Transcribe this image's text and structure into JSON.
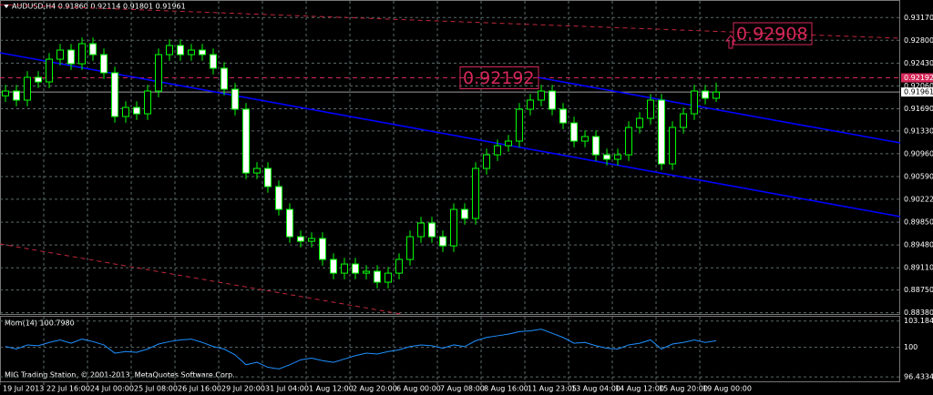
{
  "window": {
    "title": "AUDUSD,H4  0.91860 0.92114 0.91801 0.91961",
    "footer": "MIG Trading Station, © 2001-2013, MetaQuotes Software Corp."
  },
  "chart_data": [
    {
      "type": "candlestick",
      "grid": true,
      "wick_color": "#00ff00",
      "up_color": "#000000",
      "down_color": "#ffffff",
      "xlim": [
        -0.5,
        81.83
      ],
      "xticks": [
        {
          "value": -0.5,
          "label": "19 Jul 2013"
        },
        {
          "value": 3.5,
          "label": "22 Jul 16:00"
        },
        {
          "value": 7.5,
          "label": "24 Jul 00:00"
        },
        {
          "value": 11.5,
          "label": "25 Jul 08:00"
        },
        {
          "value": 15.5,
          "label": "26 Jul 16:00"
        },
        {
          "value": 19.5,
          "label": "29 Jul 20:00"
        },
        {
          "value": 23.5,
          "label": "31 Jul 04:00"
        },
        {
          "value": 27.5,
          "label": "1 Aug 12:00"
        },
        {
          "value": 31.5,
          "label": "2 Aug 20:00"
        },
        {
          "value": 35.5,
          "label": "6 Aug 00:00"
        },
        {
          "value": 39.5,
          "label": "7 Aug 08:00"
        },
        {
          "value": 43.5,
          "label": "8 Aug 16:00"
        },
        {
          "value": 47.5,
          "label": "11 Aug 23:05"
        },
        {
          "value": 51.5,
          "label": "13 Aug 04:00"
        },
        {
          "value": 55.5,
          "label": "14 Aug 12:00"
        },
        {
          "value": 59.5,
          "label": "15 Aug 20:00"
        },
        {
          "value": 63.5,
          "label": "19 Aug 00:00"
        }
      ],
      "ylim": [
        0.8836,
        0.9341
      ],
      "yticks": [
        {
          "value": 0.9317,
          "label": "0.93170"
        },
        {
          "value": 0.928,
          "label": "0.92800"
        },
        {
          "value": 0.9243,
          "label": "0.92430"
        },
        {
          "value": 0.9206,
          "label": "0.92060"
        },
        {
          "value": 0.9169,
          "label": "0.91690"
        },
        {
          "value": 0.9133,
          "label": "0.91330"
        },
        {
          "value": 0.9096,
          "label": "0.90960"
        },
        {
          "value": 0.9059,
          "label": "0.90590"
        },
        0.90222,
        {
          "value": 0.8985,
          "label": "0.89850"
        },
        {
          "value": 0.8948,
          "label": "0.89480"
        },
        {
          "value": 0.8911,
          "label": "0.89110"
        },
        {
          "value": 0.8875,
          "label": "0.88750"
        },
        {
          "value": 0.8838,
          "label": "0.88380"
        }
      ],
      "open": [
        0.919,
        0.91977,
        0.9183,
        0.92199,
        0.92125,
        0.92494,
        0.92642,
        0.9242,
        0.92745,
        0.92568,
        0.92273,
        0.91564,
        0.91711,
        0.91608,
        0.91977,
        0.92568,
        0.92716,
        0.92568,
        0.92642,
        0.92568,
        0.92347,
        0.92007,
        0.91682,
        0.90648,
        0.90722,
        0.90427,
        0.90057,
        0.89614,
        0.8954,
        0.89585,
        0.89245,
        0.89023,
        0.89171,
        0.89023,
        0.89053,
        0.88876,
        0.89023,
        0.89245,
        0.89614,
        0.89836,
        0.89614,
        0.89466,
        0.90057,
        0.8991,
        0.90722,
        0.90943,
        0.91091,
        0.91165,
        0.91682,
        0.9183,
        0.91977,
        0.91682,
        0.9146,
        0.91165,
        0.91239,
        0.90943,
        0.9087,
        0.90943,
        0.91387,
        0.91534,
        0.9183,
        0.90796,
        0.91387,
        0.91608,
        0.91977,
        0.9186
      ],
      "high": [
        0.92077,
        0.92077,
        0.92299,
        0.92299,
        0.92594,
        0.92742,
        0.92742,
        0.92845,
        0.92845,
        0.92668,
        0.92373,
        0.91811,
        0.91811,
        0.92077,
        0.92668,
        0.92816,
        0.92816,
        0.92742,
        0.92742,
        0.92668,
        0.92447,
        0.92107,
        0.91782,
        0.90822,
        0.90822,
        0.90527,
        0.90157,
        0.89714,
        0.89685,
        0.89685,
        0.89345,
        0.89271,
        0.89271,
        0.89153,
        0.89153,
        0.89123,
        0.89345,
        0.89714,
        0.89936,
        0.89936,
        0.89714,
        0.90157,
        0.90157,
        0.90822,
        0.91043,
        0.91191,
        0.91265,
        0.91782,
        0.9193,
        0.92077,
        0.92077,
        0.91782,
        0.9156,
        0.91339,
        0.91339,
        0.91043,
        0.91043,
        0.91487,
        0.91634,
        0.9193,
        0.9193,
        0.91487,
        0.91708,
        0.92077,
        0.92077,
        0.92114
      ],
      "low": [
        0.918,
        0.9173,
        0.9173,
        0.92025,
        0.92025,
        0.92394,
        0.9232,
        0.9232,
        0.92468,
        0.92173,
        0.91464,
        0.91464,
        0.91508,
        0.91508,
        0.91877,
        0.92468,
        0.92468,
        0.92468,
        0.92468,
        0.92247,
        0.91907,
        0.91582,
        0.90548,
        0.90548,
        0.90327,
        0.89957,
        0.89514,
        0.8944,
        0.8944,
        0.89145,
        0.88923,
        0.88923,
        0.88923,
        0.88923,
        0.88776,
        0.88776,
        0.88923,
        0.89145,
        0.89514,
        0.89514,
        0.89366,
        0.89366,
        0.8981,
        0.8981,
        0.90622,
        0.90843,
        0.90991,
        0.91065,
        0.91582,
        0.9173,
        0.91582,
        0.9136,
        0.91065,
        0.91065,
        0.90843,
        0.9077,
        0.9077,
        0.90843,
        0.91287,
        0.91434,
        0.90696,
        0.90696,
        0.91287,
        0.91508,
        0.9176,
        0.91801
      ],
      "close": [
        0.91977,
        0.9183,
        0.92199,
        0.92125,
        0.92494,
        0.92642,
        0.9242,
        0.92745,
        0.92568,
        0.92273,
        0.91564,
        0.91711,
        0.91608,
        0.91977,
        0.92568,
        0.92716,
        0.92568,
        0.92642,
        0.92568,
        0.92347,
        0.92007,
        0.91682,
        0.90648,
        0.90722,
        0.90427,
        0.90057,
        0.89614,
        0.8954,
        0.89585,
        0.89245,
        0.89023,
        0.89171,
        0.89023,
        0.89053,
        0.88876,
        0.89023,
        0.89245,
        0.89614,
        0.89836,
        0.89614,
        0.89466,
        0.90057,
        0.8991,
        0.90722,
        0.90943,
        0.91091,
        0.91165,
        0.91682,
        0.9183,
        0.91977,
        0.91682,
        0.9146,
        0.91165,
        0.91239,
        0.90943,
        0.9087,
        0.90943,
        0.91387,
        0.91534,
        0.9183,
        0.90796,
        0.91387,
        0.91608,
        0.91977,
        0.9186,
        0.91961
      ],
      "hline": {
        "value": 0.92192,
        "color": "#d6285a"
      },
      "target": {
        "value": 0.92908,
        "color": "#d6285a"
      },
      "trendlines": [
        {
          "color": "#c0283c",
          "dashed": true,
          "x": [
            -0.5,
            81.83
          ],
          "y": [
            0.9338,
            0.92834
          ]
        },
        {
          "color": "#c0283c",
          "dashed": true,
          "x": [
            -0.5,
            36.17
          ],
          "y": [
            0.89497,
            0.8836
          ]
        },
        {
          "color": "#0000ff",
          "dashed": false,
          "x": [
            -0.5,
            81.83
          ],
          "y": [
            0.92598,
            0.8994
          ]
        },
        {
          "color": "#0000ff",
          "dashed": false,
          "x": [
            48.67,
            81.83
          ],
          "y": [
            0.92199,
            0.91136
          ]
        }
      ]
    },
    {
      "type": "line",
      "title": "Mom(14) 100.7980",
      "grid": true,
      "ylim": [
        95.9,
        103.7
      ],
      "yticks": [
        103.1848,
        100,
        96.4334
      ],
      "series": [
        {
          "color": "#1e90ff",
          "values": [
            100.1,
            99.8,
            100.3,
            100.2,
            100.6,
            100.9,
            100.5,
            101.0,
            100.7,
            100.3,
            99.3,
            99.5,
            99.4,
            99.8,
            100.4,
            100.7,
            100.9,
            101.0,
            100.6,
            100.1,
            99.8,
            99.1,
            97.9,
            98.2,
            97.6,
            97.4,
            97.9,
            98.5,
            98.7,
            98.4,
            98.2,
            98.6,
            99.0,
            99.3,
            99.2,
            99.5,
            99.7,
            100.1,
            100.3,
            100.2,
            99.9,
            100.3,
            100.1,
            100.8,
            101.2,
            101.4,
            101.6,
            101.9,
            102.0,
            102.2,
            101.7,
            101.2,
            100.5,
            100.6,
            100.2,
            99.9,
            99.8,
            100.3,
            100.5,
            100.9,
            99.8,
            100.4,
            100.6,
            100.9,
            100.6,
            100.8
          ]
        }
      ]
    }
  ]
}
